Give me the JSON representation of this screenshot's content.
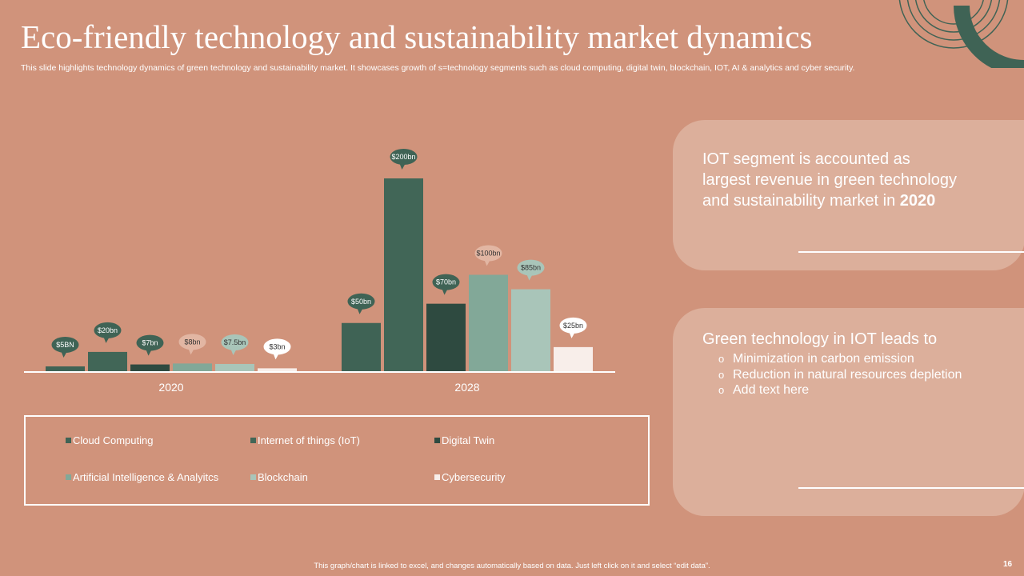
{
  "slide": {
    "title": "Eco-friendly technology and sustainability market dynamics",
    "subtitle": "This slide highlights technology dynamics of green technology and sustainability market. It showcases growth of s=technology segments such as cloud computing, digital twin, blockchain, IOT, AI & analytics and cyber security.",
    "footnote": "This graph/chart is linked to excel, and changes automatically based on data. Just left click on it and select “edit data”.",
    "page_number": "16"
  },
  "colors": {
    "background": "#D0937B",
    "card": "#DCAF9B",
    "accent_dark": "#3F6355"
  },
  "chart_data": {
    "type": "bar",
    "categories": [
      "2020",
      "2028"
    ],
    "series": [
      {
        "name": "Cloud Computing",
        "values": [
          5,
          50
        ],
        "labels": [
          "$5BN",
          "$50bn"
        ],
        "color": "#3F6355"
      },
      {
        "name": "Internet of things (IoT)",
        "values": [
          20,
          200
        ],
        "labels": [
          "$20bn",
          "$200bn"
        ],
        "color": "#416657"
      },
      {
        "name": "Digital Twin",
        "values": [
          7,
          70
        ],
        "labels": [
          "$7bn",
          "$70bn"
        ],
        "color": "#2E4A40"
      },
      {
        "name": "Artificial Intelligence & Analyitcs",
        "values": [
          8,
          100
        ],
        "labels": [
          "$8bn",
          "$100bn"
        ],
        "color": "#82A898"
      },
      {
        "name": "Blockchain",
        "values": [
          7.5,
          85
        ],
        "labels": [
          "$7.5bn",
          "$85bn"
        ],
        "color": "#A9C5B9"
      },
      {
        "name": "Cybersecurity",
        "values": [
          3,
          25
        ],
        "labels": [
          "$3bn",
          "$25bn"
        ],
        "color": "#F8EEEA"
      }
    ],
    "ylim": [
      0,
      200
    ],
    "legend_position": "bottom"
  },
  "card1": {
    "text": "IOT segment is accounted as largest revenue in green technology and sustainability market in ",
    "year": "2020"
  },
  "card2": {
    "title": "Green technology in IOT leads to",
    "bullet_mark": "o",
    "items": [
      "Minimization in carbon emission",
      "Reduction in natural resources depletion",
      "Add text here"
    ]
  }
}
